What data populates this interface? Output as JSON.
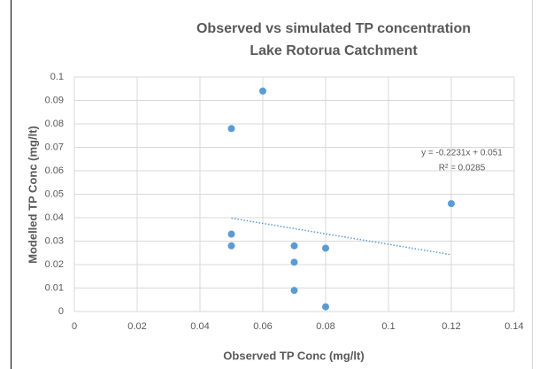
{
  "chart_data": {
    "type": "scatter",
    "title": [
      "Observed vs simulated TP concentration",
      "Lake Rotorua Catchment"
    ],
    "x_label": "Observed TP Conc (mg/lt)",
    "y_label": "Modelled TP Conc (mg/lt)",
    "x": [
      0.05,
      0.06,
      0.05,
      0.05,
      0.07,
      0.07,
      0.07,
      0.08,
      0.08,
      0.12
    ],
    "values": [
      0.078,
      0.094,
      0.033,
      0.028,
      0.028,
      0.021,
      0.009,
      0.027,
      0.002,
      0.046
    ],
    "color": "#5b9bd5",
    "xlim": [
      0,
      0.14
    ],
    "xticks": [
      0,
      0.02,
      0.04,
      0.06,
      0.08,
      0.1,
      0.12,
      0.14
    ],
    "ylim": [
      0,
      0.1
    ],
    "yticks": [
      0,
      0.01,
      0.02,
      0.03,
      0.04,
      0.05,
      0.06,
      0.07,
      0.08,
      0.09,
      0.1
    ],
    "grid": true,
    "trendline": {
      "x": [
        0.05,
        0.12
      ],
      "values": [
        0.0398,
        0.0242
      ]
    },
    "annotations": [
      "y = -0.2231x + 0.051",
      "R² = 0.0285"
    ]
  }
}
